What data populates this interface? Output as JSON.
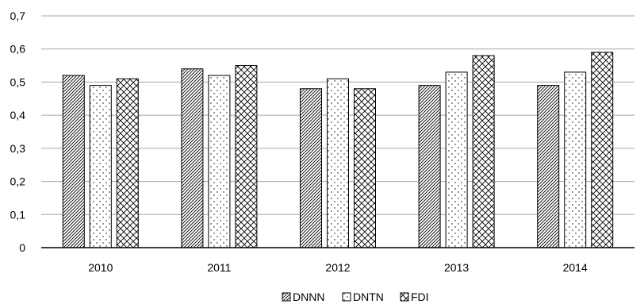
{
  "chart_data": {
    "type": "bar",
    "categories": [
      "2010",
      "2011",
      "2012",
      "2013",
      "2014"
    ],
    "series": [
      {
        "name": "DNNN",
        "pattern": "diagonal-hatch",
        "values": [
          0.52,
          0.54,
          0.48,
          0.49,
          0.49
        ]
      },
      {
        "name": "DNTN",
        "pattern": "dots",
        "values": [
          0.49,
          0.52,
          0.51,
          0.53,
          0.53
        ]
      },
      {
        "name": "FDI",
        "pattern": "crosshatch",
        "values": [
          0.51,
          0.55,
          0.48,
          0.58,
          0.59
        ]
      }
    ],
    "y_ticks": [
      "0",
      "0,1",
      "0,2",
      "0,3",
      "0,4",
      "0,5",
      "0,6",
      "0,7"
    ],
    "ylim": [
      0,
      0.7
    ],
    "title": "",
    "xlabel": "",
    "ylabel": "",
    "grid": true,
    "legend_position": "bottom-center",
    "colors": {
      "bar_fill": "#ffffff",
      "stroke": "#000000",
      "grid": "#a6a6a6"
    }
  }
}
